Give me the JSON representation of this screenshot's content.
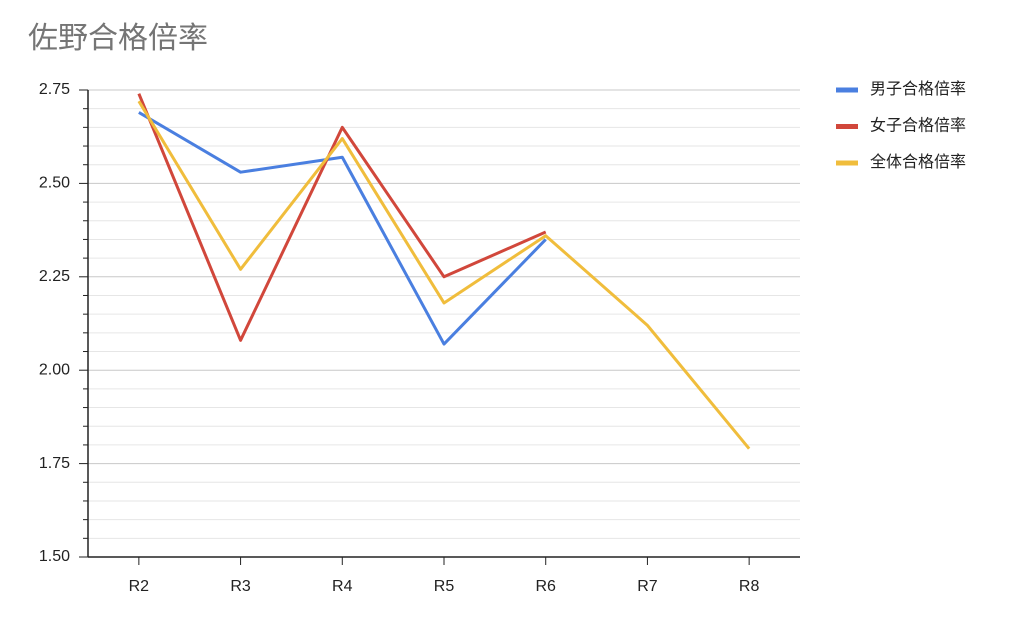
{
  "chart_data": {
    "type": "line",
    "title": "佐野合格倍率",
    "categories": [
      "R2",
      "R3",
      "R4",
      "R5",
      "R6",
      "R7",
      "R8"
    ],
    "series": [
      {
        "name": "男子合格倍率",
        "color": "#4a7fe0",
        "values": [
          2.69,
          2.53,
          2.57,
          2.07,
          2.35,
          null,
          null
        ]
      },
      {
        "name": "女子合格倍率",
        "color": "#d1473b",
        "values": [
          2.74,
          2.08,
          2.65,
          2.25,
          2.37,
          null,
          null
        ]
      },
      {
        "name": "全体合格倍率",
        "color": "#f0bd3c",
        "values": [
          2.72,
          2.27,
          2.62,
          2.18,
          2.36,
          2.12,
          1.79
        ]
      }
    ],
    "ylim": [
      1.5,
      2.75
    ],
    "yticks": [
      {
        "value": 1.5,
        "label": "1.50"
      },
      1.75,
      {
        "value": 2,
        "label": "2.00"
      },
      2.25,
      {
        "value": 2.5,
        "label": "2.50"
      },
      2.75
    ],
    "minor_yticks": [
      1.55,
      1.6,
      1.65,
      1.7,
      1.8,
      1.85,
      1.9,
      1.95,
      2.05,
      2.1,
      2.15,
      2.2,
      2.3,
      2.35,
      2.4,
      2.45,
      2.55,
      2.6,
      2.65,
      2.7
    ],
    "grid": true,
    "legend": "right"
  }
}
